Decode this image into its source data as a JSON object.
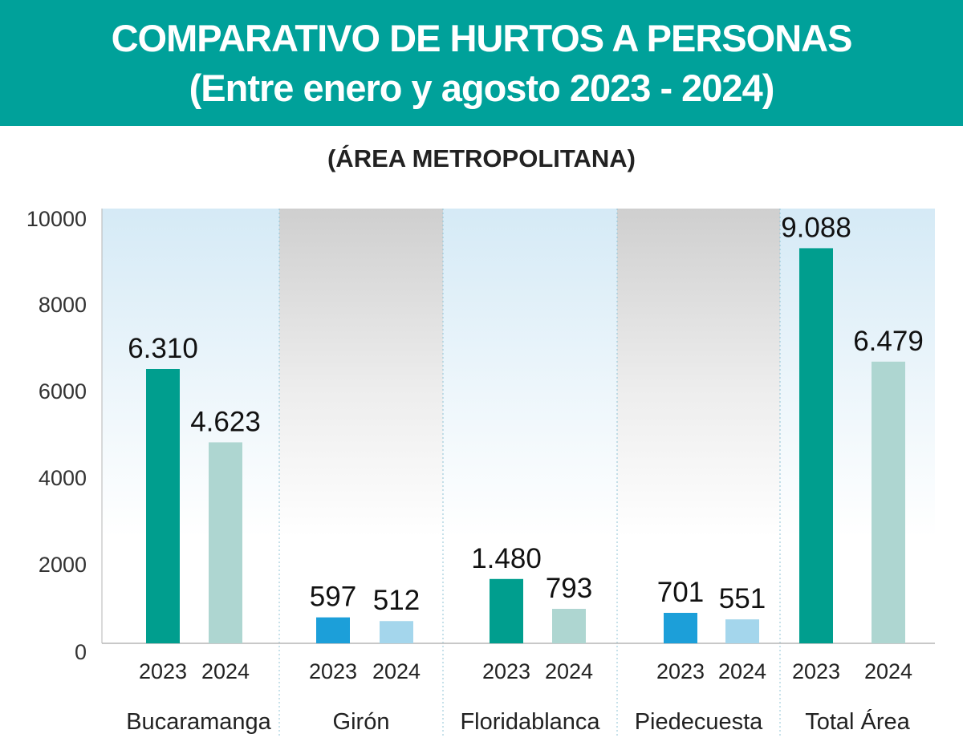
{
  "title_line1": "COMPARATIVO DE HURTOS A PERSONAS",
  "title_line2": "(Entre enero y agosto 2023 - 2024)",
  "subtitle": "(ÁREA METROPOLITANA)",
  "colors": {
    "banner": "#00a19a",
    "teal_2023": "#009e8e",
    "teal_2024": "#aed6d1",
    "blue_2023": "#1c9fd9",
    "blue_2024": "#a4d6ec"
  },
  "chart_data": {
    "type": "bar",
    "title": "COMPARATIVO DE HURTOS A PERSONAS",
    "subtitle": "(ÁREA METROPOLITANA)",
    "ylim": [
      0,
      10000
    ],
    "yticks": [
      "10000",
      "8000",
      "6000",
      "4000",
      "2000",
      "0"
    ],
    "grid": false,
    "groups": [
      {
        "name": "Bucaramanga",
        "bars": [
          {
            "year": "2023",
            "value": 6310,
            "label": "6.310"
          },
          {
            "year": "2024",
            "value": 4623,
            "label": "4.623"
          }
        ]
      },
      {
        "name": "Girón",
        "bars": [
          {
            "year": "2023",
            "value": 597,
            "label": "597"
          },
          {
            "year": "2024",
            "value": 512,
            "label": "512"
          }
        ]
      },
      {
        "name": "Floridablanca",
        "bars": [
          {
            "year": "2023",
            "value": 1480,
            "label": "1.480"
          },
          {
            "year": "2024",
            "value": 793,
            "label": "793"
          }
        ]
      },
      {
        "name": "Piedecuesta",
        "bars": [
          {
            "year": "2023",
            "value": 701,
            "label": "701"
          },
          {
            "year": "2024",
            "value": 551,
            "label": "551"
          }
        ]
      },
      {
        "name": "Total Área",
        "bars": [
          {
            "year": "2023",
            "value": 9088,
            "label": "9.088"
          },
          {
            "year": "2024",
            "value": 6479,
            "label": "6.479"
          }
        ]
      }
    ]
  }
}
